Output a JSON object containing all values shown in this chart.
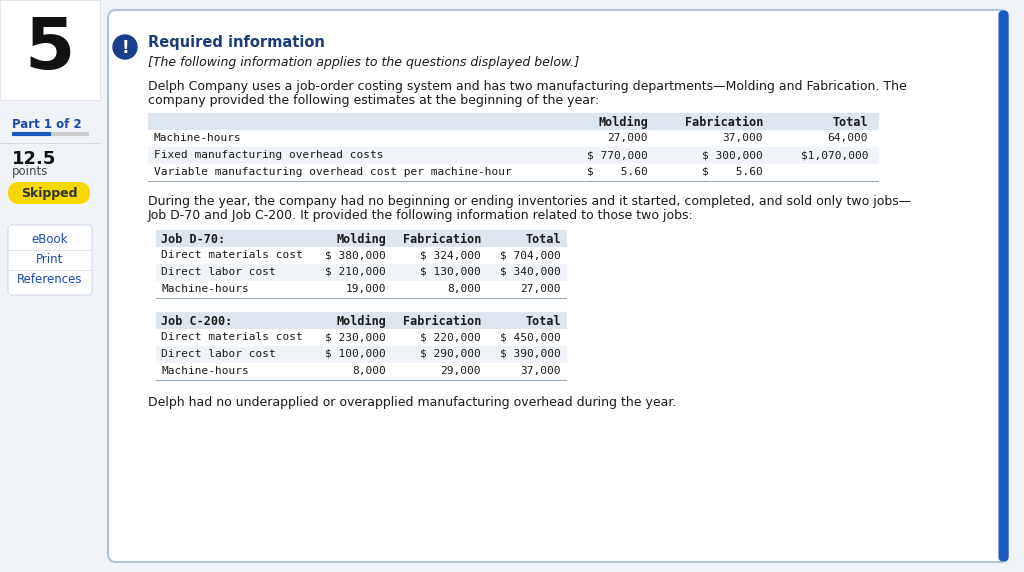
{
  "question_number": "5",
  "part_label": "Part 1 of 2",
  "points": "12.5",
  "points_label": "points",
  "skipped_label": "Skipped",
  "sidebar_links": [
    "eBook",
    "Print",
    "References"
  ],
  "required_info_title": "Required information",
  "italic_subtitle": "[The following information applies to the questions displayed below.]",
  "intro_line1": "Delph Company uses a job-order costing system and has two manufacturing departments—Molding and Fabrication. The",
  "intro_line2": "company provided the following estimates at the beginning of the year:",
  "table1_rows": [
    [
      "Machine-hours",
      "27,000",
      "37,000",
      "64,000"
    ],
    [
      "Fixed manufacturing overhead costs",
      "$ 770,000",
      "$ 300,000",
      "$1,070,000"
    ],
    [
      "Variable manufacturing overhead cost per machine-hour",
      "$    5.60",
      "$    5.60",
      ""
    ]
  ],
  "middle_line1": "During the year, the company had no beginning or ending inventories and it started, completed, and sold only two jobs—",
  "middle_line2": "Job D-70 and Job C-200. It provided the following information related to those two jobs:",
  "table2_title": "Job D-70:",
  "table2_rows": [
    [
      "Direct materials cost",
      "$ 380,000",
      "$ 324,000",
      "$ 704,000"
    ],
    [
      "Direct labor cost",
      "$ 210,000",
      "$ 130,000",
      "$ 340,000"
    ],
    [
      "Machine-hours",
      "19,000",
      "8,000",
      "27,000"
    ]
  ],
  "table3_title": "Job C-200:",
  "table3_rows": [
    [
      "Direct materials cost",
      "$ 230,000",
      "$ 220,000",
      "$ 450,000"
    ],
    [
      "Direct labor cost",
      "$ 100,000",
      "$ 290,000",
      "$ 390,000"
    ],
    [
      "Machine-hours",
      "8,000",
      "29,000",
      "37,000"
    ]
  ],
  "footer_text": "Delph had no underapplied or overapplied manufacturing overhead during the year.",
  "bg_color": "#f0f4f8",
  "card_color": "#ffffff",
  "card_border_color": "#b0c4de",
  "table_header_bg": "#dde5ee",
  "table_row_bg1": "#ffffff",
  "table_row_bg2": "#f0f4f8",
  "title_color": "#1a3e7a",
  "text_color": "#1a1a1a",
  "mono_color": "#1a1a1a",
  "skipped_bg": "#f5d800",
  "skipped_text": "#333333",
  "link_color": "#1a4aaa",
  "accent_color": "#1a5abf",
  "icon_color": "#1a3e8a",
  "progress_color": "#1a5abf",
  "sidebar_bg": "#ffffff",
  "sidebar_border": "#e0e0e0",
  "links_box_border": "#d0d8e8"
}
